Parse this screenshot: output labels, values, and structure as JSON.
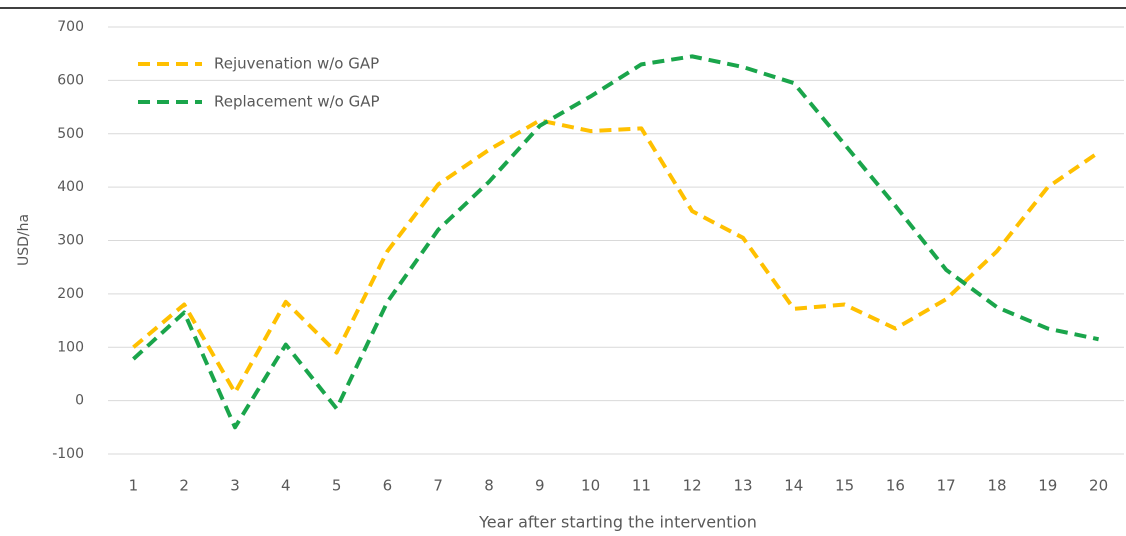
{
  "chart_data": {
    "type": "line",
    "x_label": "Year after starting the intervention",
    "y_label": "USD/ha",
    "categories": [
      "1",
      "2",
      "3",
      "4",
      "5",
      "6",
      "7",
      "8",
      "9",
      "10",
      "11",
      "12",
      "13",
      "14",
      "15",
      "16",
      "17",
      "18",
      "19",
      "20"
    ],
    "series": [
      {
        "name": "Rejuvenation w/o GAP",
        "color": "#ffc000",
        "values": [
          100,
          180,
          15,
          185,
          90,
          280,
          405,
          470,
          525,
          505,
          510,
          355,
          305,
          172,
          180,
          135,
          190,
          280,
          400,
          465
        ]
      },
      {
        "name": "Replacement w/o GAP",
        "color": "#1aa54b",
        "values": [
          78,
          165,
          -50,
          105,
          -15,
          185,
          320,
          410,
          515,
          570,
          630,
          645,
          625,
          595,
          480,
          365,
          245,
          175,
          135,
          115
        ]
      }
    ],
    "ylim": [
      -100,
      700
    ],
    "yticks": [
      -100,
      0,
      100,
      200,
      300,
      400,
      500,
      600,
      700
    ],
    "grid": true,
    "legend": "upper left"
  }
}
